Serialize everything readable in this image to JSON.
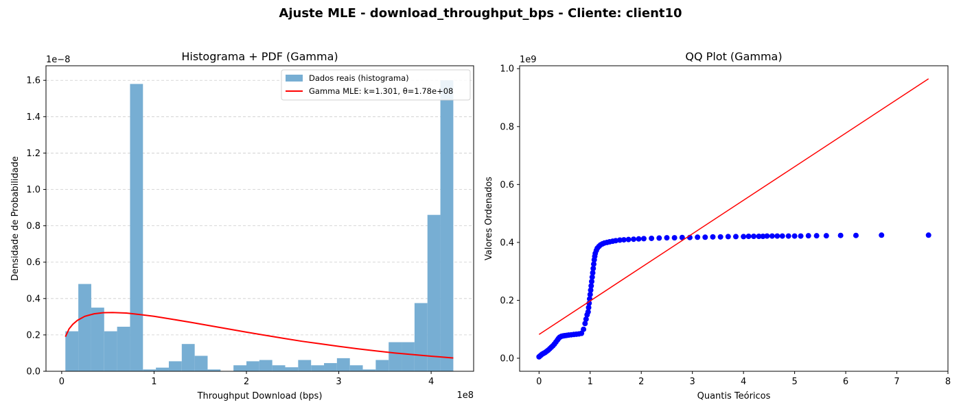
{
  "suptitle": "Ajuste MLE - download_throughput_bps - Cliente: client10",
  "colors": {
    "hist_bar": "#77aed3",
    "pdf_line": "#ff0000",
    "qq_points": "#0000ff",
    "qq_line": "#ff0000",
    "grid": "#cccccc"
  },
  "chart_data": [
    {
      "type": "bar",
      "title": "Histograma + PDF (Gamma)",
      "xlabel": "Throughput Download (bps)",
      "ylabel": "Densidade de Probabilidade",
      "x_offset_text": "1e8",
      "y_offset_text": "1e−8",
      "xlim": [
        -0.17,
        4.46
      ],
      "ylim": [
        0,
        1.68
      ],
      "x_unit_scale": "1e8",
      "y_unit_scale": "1e-8",
      "xticks": [
        0,
        1,
        2,
        3,
        4
      ],
      "xtick_labels": [
        "0",
        "1",
        "2",
        "3",
        "4"
      ],
      "yticks": [
        0.0,
        0.2,
        0.4,
        0.6,
        0.8,
        1.0,
        1.2,
        1.4,
        1.6
      ],
      "ytick_labels": [
        "0.0",
        "0.2",
        "0.4",
        "0.6",
        "0.8",
        "1.0",
        "1.2",
        "1.4",
        "1.6"
      ],
      "grid": "y-dashed",
      "legend_position": "upper right",
      "legend": [
        "Dados reais (histograma)",
        "Gamma MLE: k=1.301, θ=1.78e+08"
      ],
      "bins": {
        "start": 0.04,
        "width": 0.14,
        "values": [
          0.22,
          0.48,
          0.35,
          0.22,
          0.245,
          1.58,
          0.01,
          0.02,
          0.055,
          0.15,
          0.085,
          0.01,
          0.0,
          0.033,
          0.055,
          0.062,
          0.033,
          0.022,
          0.062,
          0.033,
          0.045,
          0.072,
          0.033,
          0.01,
          0.062,
          0.16,
          0.16,
          0.375,
          0.86,
          1.6
        ]
      },
      "series": [
        {
          "name": "Gamma MLE: k=1.301, θ=1.78e+08",
          "type": "line",
          "x": [
            0.04,
            0.08,
            0.12,
            0.17,
            0.25,
            0.35,
            0.45,
            0.55,
            0.7,
            0.85,
            1.0,
            1.2,
            1.4,
            1.6,
            1.8,
            2.0,
            2.2,
            2.4,
            2.6,
            2.8,
            3.0,
            3.2,
            3.4,
            3.6,
            3.8,
            4.0,
            4.24
          ],
          "y": [
            0.19,
            0.233,
            0.258,
            0.28,
            0.302,
            0.316,
            0.322,
            0.323,
            0.32,
            0.312,
            0.302,
            0.286,
            0.269,
            0.251,
            0.233,
            0.215,
            0.198,
            0.181,
            0.165,
            0.151,
            0.137,
            0.124,
            0.112,
            0.101,
            0.092,
            0.083,
            0.073
          ]
        }
      ]
    },
    {
      "type": "scatter",
      "title": "QQ Plot (Gamma)",
      "xlabel": "Quantis Teóricos",
      "ylabel": "Valores Ordenados",
      "y_offset_text": "1e9",
      "xlim": [
        -0.38,
        8.0
      ],
      "ylim": [
        -0.045,
        1.01
      ],
      "y_unit_scale": "1e9",
      "xticks": [
        0,
        1,
        2,
        3,
        4,
        5,
        6,
        7,
        8
      ],
      "xtick_labels": [
        "0",
        "1",
        "2",
        "3",
        "4",
        "5",
        "6",
        "7",
        "8"
      ],
      "yticks": [
        0.0,
        0.2,
        0.4,
        0.6,
        0.8,
        1.0
      ],
      "ytick_labels": [
        "0.0",
        "0.2",
        "0.4",
        "0.6",
        "0.8",
        "1.0"
      ],
      "grid": "none",
      "series": [
        {
          "type": "scatter",
          "x": [
            0.0,
            0.02,
            0.04,
            0.06,
            0.09,
            0.12,
            0.15,
            0.18,
            0.21,
            0.24,
            0.27,
            0.3,
            0.33,
            0.36,
            0.38,
            0.4,
            0.42,
            0.44,
            0.47,
            0.5,
            0.54,
            0.58,
            0.63,
            0.68,
            0.73,
            0.78,
            0.83,
            0.87,
            0.9,
            0.92,
            0.94,
            0.96,
            0.97,
            0.98,
            0.99,
            1.0,
            1.01,
            1.02,
            1.03,
            1.04,
            1.05,
            1.06,
            1.07,
            1.08,
            1.09,
            1.1,
            1.12,
            1.14,
            1.17,
            1.2,
            1.24,
            1.28,
            1.33,
            1.38,
            1.44,
            1.5,
            1.58,
            1.66,
            1.75,
            1.85,
            1.95,
            2.05,
            2.2,
            2.35,
            2.5,
            2.65,
            2.8,
            2.95,
            3.1,
            3.25,
            3.4,
            3.55,
            3.7,
            3.85,
            4.0,
            4.1,
            4.2,
            4.3,
            4.38,
            4.46,
            4.56,
            4.66,
            4.76,
            4.88,
            5.0,
            5.12,
            5.27,
            5.43,
            5.62,
            5.9,
            6.2,
            6.7,
            7.62
          ],
          "y": [
            0.005,
            0.008,
            0.011,
            0.014,
            0.017,
            0.02,
            0.024,
            0.028,
            0.033,
            0.038,
            0.043,
            0.049,
            0.056,
            0.063,
            0.068,
            0.072,
            0.074,
            0.076,
            0.077,
            0.078,
            0.079,
            0.08,
            0.081,
            0.082,
            0.083,
            0.084,
            0.086,
            0.1,
            0.12,
            0.135,
            0.15,
            0.16,
            0.175,
            0.19,
            0.205,
            0.22,
            0.235,
            0.25,
            0.265,
            0.28,
            0.295,
            0.31,
            0.325,
            0.34,
            0.352,
            0.362,
            0.372,
            0.38,
            0.386,
            0.391,
            0.395,
            0.398,
            0.4,
            0.402,
            0.404,
            0.406,
            0.408,
            0.409,
            0.41,
            0.411,
            0.412,
            0.413,
            0.414,
            0.415,
            0.416,
            0.416,
            0.417,
            0.417,
            0.418,
            0.418,
            0.419,
            0.419,
            0.42,
            0.42,
            0.42,
            0.421,
            0.421,
            0.421,
            0.421,
            0.422,
            0.422,
            0.422,
            0.422,
            0.422,
            0.422,
            0.422,
            0.423,
            0.423,
            0.423,
            0.424,
            0.424,
            0.425,
            0.425
          ]
        },
        {
          "type": "line",
          "x": [
            0.0,
            7.62
          ],
          "y": [
            0.082,
            0.965
          ]
        }
      ]
    }
  ]
}
